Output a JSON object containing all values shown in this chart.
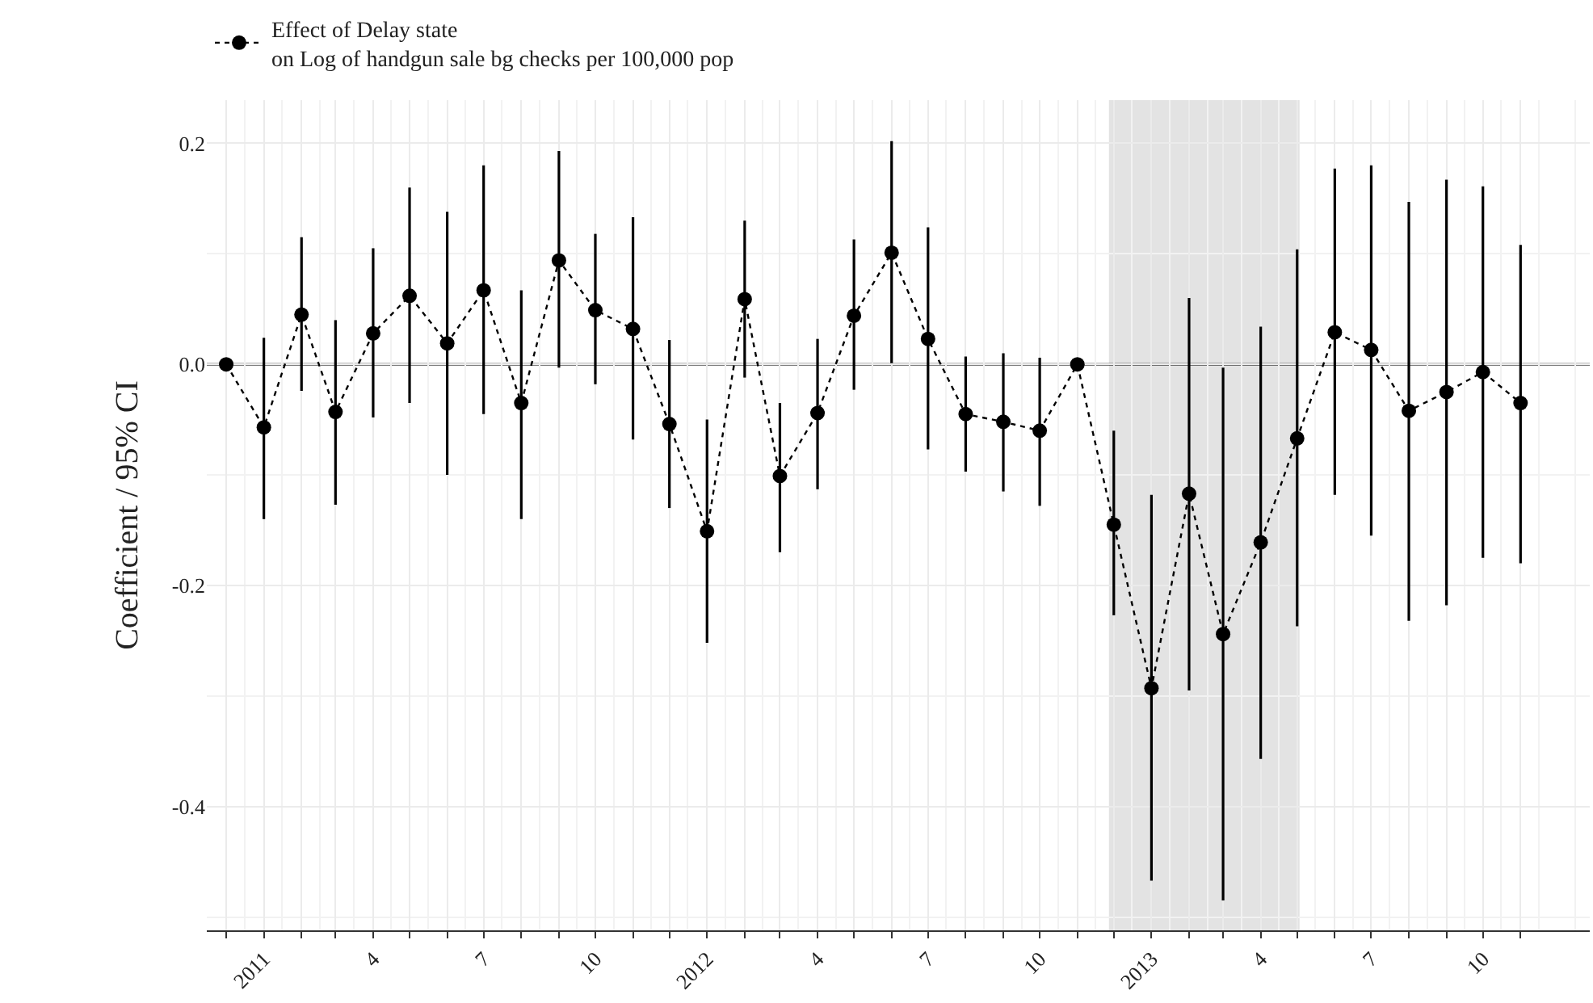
{
  "chart_data": {
    "type": "line",
    "ylabel": "Coefficient / 95% CI",
    "x": [
      "2010-12",
      "2011-01",
      "2011-02",
      "2011-03",
      "2011-04",
      "2011-05",
      "2011-06",
      "2011-07",
      "2011-08",
      "2011-09",
      "2011-10",
      "2011-11",
      "2011-12",
      "2012-01",
      "2012-02",
      "2012-03",
      "2012-04",
      "2012-05",
      "2012-06",
      "2012-07",
      "2012-08",
      "2012-09",
      "2012-10",
      "2012-11",
      "2012-12",
      "2013-01",
      "2013-02",
      "2013-03",
      "2013-04",
      "2013-05",
      "2013-06",
      "2013-07",
      "2013-08",
      "2013-09",
      "2013-10",
      "2013-11"
    ],
    "series": [
      {
        "name": "Effect of Delay state\non Log of handgun sale bg checks per 100,000 pop",
        "color": "#000000",
        "values": [
          0,
          -0.057,
          0.045,
          -0.043,
          0.028,
          0.062,
          0.019,
          0.067,
          -0.035,
          0.094,
          0.049,
          0.032,
          -0.054,
          -0.151,
          0.059,
          -0.101,
          -0.044,
          0.044,
          0.101,
          0.023,
          -0.045,
          -0.052,
          -0.06,
          0,
          -0.145,
          -0.293,
          -0.117,
          -0.244,
          -0.161,
          -0.067,
          0.029,
          0.013,
          -0.042,
          -0.025,
          -0.007,
          -0.035
        ],
        "errors": [
          null,
          [
            -0.14,
            0.024
          ],
          [
            -0.024,
            0.115
          ],
          [
            -0.127,
            0.04
          ],
          [
            -0.048,
            0.105
          ],
          [
            -0.035,
            0.16
          ],
          [
            -0.1,
            0.138
          ],
          [
            -0.045,
            0.18
          ],
          [
            -0.14,
            0.067
          ],
          [
            -0.003,
            0.193
          ],
          [
            -0.018,
            0.118
          ],
          [
            -0.068,
            0.133
          ],
          [
            -0.13,
            0.022
          ],
          [
            -0.252,
            -0.05
          ],
          [
            -0.012,
            0.13
          ],
          [
            -0.17,
            -0.035
          ],
          [
            -0.113,
            0.023
          ],
          [
            -0.023,
            0.113
          ],
          [
            0.001,
            0.202
          ],
          [
            -0.077,
            0.124
          ],
          [
            -0.097,
            0.007
          ],
          [
            -0.115,
            0.01
          ],
          [
            -0.128,
            0.006
          ],
          null,
          [
            -0.227,
            -0.06
          ],
          [
            -0.467,
            -0.118
          ],
          [
            -0.295,
            0.06
          ],
          [
            -0.485,
            -0.003
          ],
          [
            -0.357,
            0.034
          ],
          [
            -0.237,
            0.104
          ],
          [
            -0.118,
            0.177
          ],
          [
            -0.155,
            0.18
          ],
          [
            -0.232,
            0.147
          ],
          [
            -0.218,
            0.167
          ],
          [
            -0.175,
            0.161
          ],
          [
            -0.18,
            0.108
          ]
        ]
      }
    ],
    "xlim": [
      "2010-11-15",
      "2013-12-28"
    ],
    "xticks": [
      {
        "value": "2010-12",
        "label": null
      },
      {
        "value": "2011-01",
        "label": "2011"
      },
      {
        "value": "2011-02",
        "label": null
      },
      {
        "value": "2011-03",
        "label": null
      },
      {
        "value": "2011-04",
        "label": "4"
      },
      {
        "value": "2011-05",
        "label": null
      },
      {
        "value": "2011-06",
        "label": null
      },
      {
        "value": "2011-07",
        "label": "7"
      },
      {
        "value": "2011-08",
        "label": null
      },
      {
        "value": "2011-09",
        "label": null
      },
      {
        "value": "2011-10",
        "label": "10"
      },
      {
        "value": "2011-11",
        "label": null
      },
      {
        "value": "2011-12",
        "label": null
      },
      {
        "value": "2012-01",
        "label": "2012"
      },
      {
        "value": "2012-02",
        "label": null
      },
      {
        "value": "2012-03",
        "label": null
      },
      {
        "value": "2012-04",
        "label": "4"
      },
      {
        "value": "2012-05",
        "label": null
      },
      {
        "value": "2012-06",
        "label": null
      },
      {
        "value": "2012-07",
        "label": "7"
      },
      {
        "value": "2012-08",
        "label": null
      },
      {
        "value": "2012-09",
        "label": null
      },
      {
        "value": "2012-10",
        "label": "10"
      },
      {
        "value": "2012-11",
        "label": null
      },
      {
        "value": "2012-12",
        "label": null
      },
      {
        "value": "2013-01",
        "label": "2013"
      },
      {
        "value": "2013-02",
        "label": null
      },
      {
        "value": "2013-03",
        "label": null
      },
      {
        "value": "2013-04",
        "label": "4"
      },
      {
        "value": "2013-05",
        "label": null
      },
      {
        "value": "2013-06",
        "label": null
      },
      {
        "value": "2013-07",
        "label": "7"
      },
      {
        "value": "2013-08",
        "label": null
      },
      {
        "value": "2013-09",
        "label": null
      },
      {
        "value": "2013-10",
        "label": "10"
      },
      {
        "value": "2013-11",
        "label": null
      }
    ],
    "ylim": [
      -0.512,
      0.239
    ],
    "yticks": [
      {
        "value": 0.2,
        "label": "0.2"
      },
      {
        "value": 0,
        "label": "0.0"
      },
      {
        "value": -0.2,
        "label": "-0.2"
      },
      {
        "value": -0.4,
        "label": "-0.4"
      }
    ],
    "ref_lines": [
      {
        "axis": "y",
        "value": 0,
        "color": "#000000"
      }
    ],
    "bands": [
      {
        "axis": "x",
        "from": "2012-11-27",
        "to": "2013-05-03",
        "color": "#e3e3e3"
      }
    ],
    "grid": true,
    "legend": "top left",
    "marker": "circle",
    "line_style": "dotted"
  }
}
